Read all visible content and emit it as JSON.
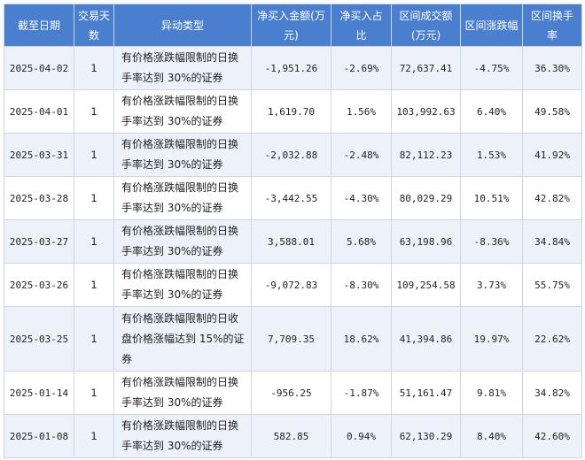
{
  "header_color": "#4a7fd0",
  "columns": [
    "截至日期",
    "交易天数",
    "异动类型",
    "净买入金额(万元)",
    "净买入占比",
    "区间成交额(万元)",
    "区间涨跌幅",
    "区间换手率"
  ],
  "rows": [
    {
      "date": "2025-04-02",
      "days": "1",
      "type": "有价格涨跌幅限制的日换手率达到 30%的证券",
      "net_buy": "-1,951.26",
      "net_ratio": "-2.69%",
      "turnover_amt": "72,637.41",
      "change": "-4.75%",
      "turnover_rate": "36.30%"
    },
    {
      "date": "2025-04-01",
      "days": "1",
      "type": "有价格涨跌幅限制的日换手率达到 30%的证券",
      "net_buy": "1,619.70",
      "net_ratio": "1.56%",
      "turnover_amt": "103,992.63",
      "change": "6.40%",
      "turnover_rate": "49.58%"
    },
    {
      "date": "2025-03-31",
      "days": "1",
      "type": "有价格涨跌幅限制的日换手率达到 30%的证券",
      "net_buy": "-2,032.88",
      "net_ratio": "-2.48%",
      "turnover_amt": "82,112.23",
      "change": "1.53%",
      "turnover_rate": "41.92%"
    },
    {
      "date": "2025-03-28",
      "days": "1",
      "type": "有价格涨跌幅限制的日换手率达到 30%的证券",
      "net_buy": "-3,442.55",
      "net_ratio": "-4.30%",
      "turnover_amt": "80,029.29",
      "change": "10.51%",
      "turnover_rate": "42.82%"
    },
    {
      "date": "2025-03-27",
      "days": "1",
      "type": "有价格涨跌幅限制的日换手率达到 30%的证券",
      "net_buy": "3,588.01",
      "net_ratio": "5.68%",
      "turnover_amt": "63,198.96",
      "change": "-8.36%",
      "turnover_rate": "34.84%"
    },
    {
      "date": "2025-03-26",
      "days": "1",
      "type": "有价格涨跌幅限制的日换手率达到 30%的证券",
      "net_buy": "-9,072.83",
      "net_ratio": "-8.30%",
      "turnover_amt": "109,254.58",
      "change": "3.73%",
      "turnover_rate": "55.75%"
    },
    {
      "date": "2025-03-25",
      "days": "1",
      "type": "有价格涨跌幅限制的日收盘价格涨幅达到 15%的证券",
      "net_buy": "7,709.35",
      "net_ratio": "18.62%",
      "turnover_amt": "41,394.86",
      "change": "19.97%",
      "turnover_rate": "22.62%"
    },
    {
      "date": "2025-01-14",
      "days": "1",
      "type": "有价格涨跌幅限制的日换手率达到 30%的证券",
      "net_buy": "-956.25",
      "net_ratio": "-1.87%",
      "turnover_amt": "51,161.47",
      "change": "9.81%",
      "turnover_rate": "34.82%"
    },
    {
      "date": "2025-01-08",
      "days": "1",
      "type": "有价格涨跌幅限制的日换手率达到 30%的证券",
      "net_buy": "582.85",
      "net_ratio": "0.94%",
      "turnover_amt": "62,130.29",
      "change": "8.40%",
      "turnover_rate": "42.60%"
    }
  ]
}
